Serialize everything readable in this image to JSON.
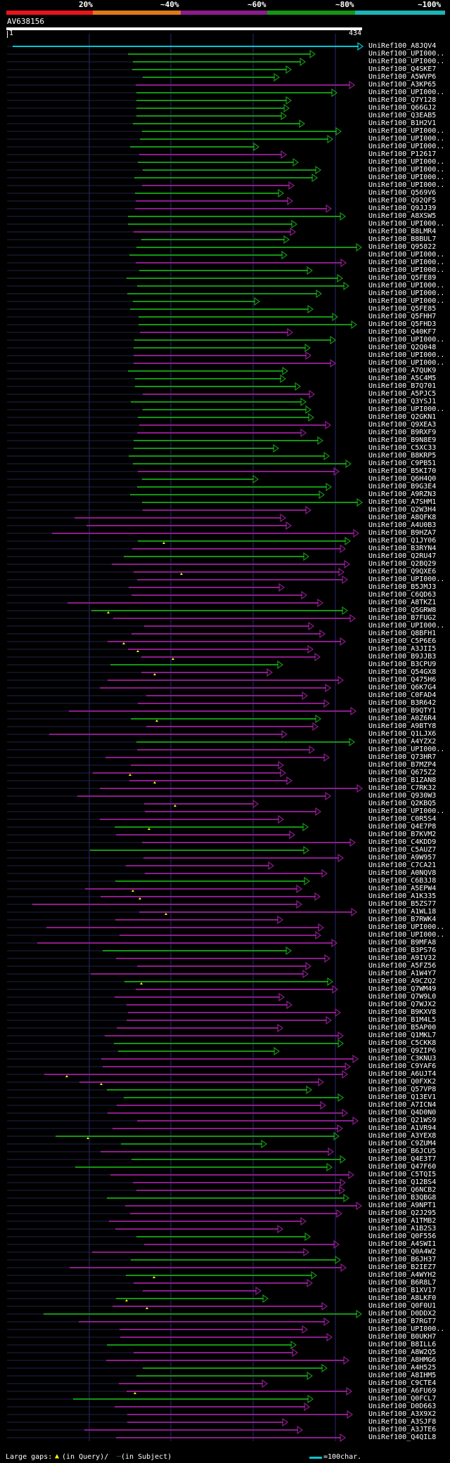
{
  "colors": {
    "background": "#000000",
    "pct20": "#e8141c",
    "pct40": "#e0781a",
    "pct60": "#8c1c8c",
    "pct80": "#149614",
    "pct100": "#1cb4b4",
    "query": "#ffffff",
    "grid": "#2a2a72",
    "gap": "#ffff00",
    "arrow_cyan": "#00c8d2"
  },
  "scale_labels": [
    "20%",
    "~40%",
    "~60%",
    "~80%",
    "~100%"
  ],
  "query": {
    "name": "AV638156",
    "start": "1",
    "end": "434"
  },
  "hits": [
    "UniRef100_A8JQV4",
    "UniRef100_UPI000..",
    "UniRef100_UPI000..",
    "UniRef100_Q4SKE7",
    "UniRef100_A5WVP6",
    "UniRef100_A3KP65",
    "UniRef100_UPI000..",
    "UniRef100_Q7Y128",
    "UniRef100_Q66GJ2",
    "UniRef100_Q3EAB5",
    "UniRef100_B1H2V1",
    "UniRef100_UPI000..",
    "UniRef100_UPI000..",
    "UniRef100_UPI000..",
    "UniRef100_P12617",
    "UniRef100_UPI000..",
    "UniRef100_UPI000..",
    "UniRef100_UPI000..",
    "UniRef100_UPI000..",
    "UniRef100_Q569V6",
    "UniRef100_Q92QF5",
    "UniRef100_Q9JJ39",
    "UniRef100_A8XSW5",
    "UniRef100_UPI000..",
    "UniRef100_B8LMR4",
    "UniRef100_B8BUL7",
    "UniRef100_Q95822",
    "UniRef100_UPI000..",
    "UniRef100_UPI000..",
    "UniRef100_UPI000..",
    "UniRef100_Q5FE89",
    "UniRef100_UPI000..",
    "UniRef100_UPI000..",
    "UniRef100_UPI000..",
    "UniRef100_Q5FE85",
    "UniRef100_Q5FHH7",
    "UniRef100_Q5FHD3",
    "UniRef100_Q40KF7",
    "UniRef100_UPI000..",
    "UniRef100_Q2Q048",
    "UniRef100_UPI000..",
    "UniRef100_UPI000..",
    "UniRef100_A7QUK9",
    "UniRef100_A5C4M5",
    "UniRef100_B7Q701",
    "UniRef100_A5PJC5",
    "UniRef100_Q3YSJ1",
    "UniRef100_UPI000..",
    "UniRef100_Q2GKN1",
    "UniRef100_Q9XEA3",
    "UniRef100_B9RXF9",
    "UniRef100_B9N8E9",
    "UniRef100_C5XC33",
    "UniRef100_B8KRP5",
    "UniRef100_C9PB51",
    "UniRef100_B5KI70",
    "UniRef100_Q6H4Q0",
    "UniRef100_B9G3E4",
    "UniRef100_A9RZN3",
    "UniRef100_A7SHM1",
    "UniRef100_Q2W3H4",
    "UniRef100_A8QFK8",
    "UniRef100_A4U0B3",
    "UniRef100_B9HZA7",
    "UniRef100_Q1JY06",
    "UniRef100_B3RYN4",
    "UniRef100_Q2RU47",
    "UniRef100_Q2BQ29",
    "UniRef100_Q9QXE6",
    "UniRef100_UPI000..",
    "UniRef100_B5JMJ3",
    "UniRef100_C6QD63",
    "UniRef100_A8TKZ1",
    "UniRef100_Q5GRW8",
    "UniRef100_B7FUG2",
    "UniRef100_UPI000..",
    "UniRef100_Q8BFH1",
    "UniRef100_C5P6E6",
    "UniRef100_A3JII5",
    "UniRef100_B9JJB3",
    "UniRef100_B3CPU9",
    "UniRef100_Q54GX8",
    "UniRef100_Q475H6",
    "UniRef100_Q6K7G4",
    "UniRef100_C0FAD4",
    "UniRef100_B3R642",
    "UniRef100_B9QTY1",
    "UniRef100_A0Z6R4",
    "UniRef100_A9BTY8",
    "UniRef100_Q1LJX6",
    "UniRef100_A4YZX2",
    "UniRef100_UPI000..",
    "UniRef100_Q73HR7",
    "UniRef100_B7MZP4",
    "UniRef100_Q675Z2",
    "UniRef100_B1ZAN8",
    "UniRef100_C7RK32",
    "UniRef100_Q930W3",
    "UniRef100_Q2KBQ5",
    "UniRef100_UPI000..",
    "UniRef100_C0R5S4",
    "UniRef100_Q4E7P8",
    "UniRef100_B7KVM2",
    "UniRef100_C4KDD9",
    "UniRef100_C5AUZ7",
    "UniRef100_A9W957",
    "UniRef100_C7CA21",
    "UniRef100_A0NQV8",
    "UniRef100_C6B3J8",
    "UniRef100_A5EPW4",
    "UniRef100_A1K335",
    "UniRef100_B5ZS77",
    "UniRef100_A1WL18",
    "UniRef100_B7RWK4",
    "UniRef100_UPI000..",
    "UniRef100_UPI000..",
    "UniRef100_B9MFA8",
    "UniRef100_B3PS76",
    "UniRef100_A9IV32",
    "UniRef100_A5FZ56",
    "UniRef100_A1W4Y7",
    "UniRef100_A9CZQ2",
    "UniRef100_Q7WM49",
    "UniRef100_Q7W9L0",
    "UniRef100_Q7WJX2",
    "UniRef100_B9KXV8",
    "UniRef100_B1M4L5",
    "UniRef100_B5AP00",
    "UniRef100_Q1MKL7",
    "UniRef100_C5CKK8",
    "UniRef100_Q9ZIP6",
    "UniRef100_C3KNU3",
    "UniRef100_C9YAF6",
    "UniRef100_A6UJT4",
    "UniRef100_Q0FXK2",
    "UniRef100_Q57VP8",
    "UniRef100_Q13EV1",
    "UniRef100_A7ICN4",
    "UniRef100_Q4D0N0",
    "UniRef100_Q21WS9",
    "UniRef100_A1VR94",
    "UniRef100_A3YEX8",
    "UniRef100_C9ZUM4",
    "UniRef100_B6JCU5",
    "UniRef100_Q4E3T7",
    "UniRef100_Q47F60",
    "UniRef100_C5TQI5",
    "UniRef100_Q12BS4",
    "UniRef100_Q6NCB2",
    "UniRef100_B3QBG8",
    "UniRef100_A9NPT1",
    "UniRef100_Q2J295",
    "UniRef100_A1TMB2",
    "UniRef100_A1B2S3",
    "UniRef100_Q0F556",
    "UniRef100_A4SWI1",
    "UniRef100_Q0A4W2",
    "UniRef100_B6JH37",
    "UniRef100_B2IEZ7",
    "UniRef100_A4WYH2",
    "UniRef100_B6R8L7",
    "UniRef100_B1XV17",
    "UniRef100_A8LKF0",
    "UniRef100_Q0F0U1",
    "UniRef100_D0DDX2",
    "UniRef100_B7RGT7",
    "UniRef100_UPI000..",
    "UniRef100_B0UKH7",
    "UniRef100_B8ILL6",
    "UniRef100_A8W2Q5",
    "UniRef100_A8HMG6",
    "UniRef100_A4H525",
    "UniRef100_A8IHM5",
    "UniRef100_C9CTE4",
    "UniRef100_A6FU69",
    "UniRef100_Q0FCL7",
    "UniRef100_D0D663",
    "UniRef100_A3X9X2",
    "UniRef100_A3SJF8",
    "UniRef100_A3JTE6",
    "UniRef100_Q4QIL8"
  ],
  "legend": {
    "large_gaps": "Large gaps:",
    "in_query": "(in Query)/",
    "in_subject": "(in Subject)",
    "scale": "=100char."
  }
}
